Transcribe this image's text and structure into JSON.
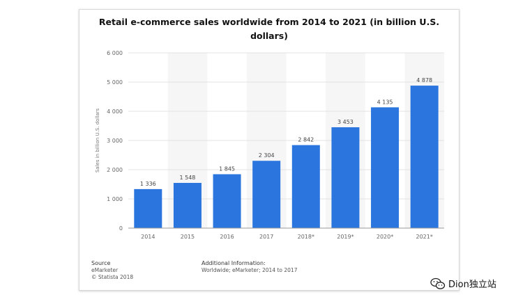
{
  "chart_data": {
    "type": "bar",
    "title": "Retail e-commerce sales worldwide from 2014 to 2021 (in billion U.S. dollars)",
    "title_line1": "Retail e-commerce sales worldwide from 2014 to 2021 (in billion U.S.",
    "title_line2": "dollars)",
    "xlabel": "",
    "ylabel": "Sales in billion U.S. dollars",
    "ylim": [
      0,
      6000
    ],
    "yticks": [
      0,
      1000,
      2000,
      3000,
      4000,
      5000,
      6000
    ],
    "ytick_labels": [
      "0",
      "1 000",
      "2 000",
      "3 000",
      "4 000",
      "5 000",
      "6 000"
    ],
    "categories": [
      "2014",
      "2015",
      "2016",
      "2017",
      "2018*",
      "2019*",
      "2020*",
      "2021*"
    ],
    "values": [
      1336,
      1548,
      1845,
      2304,
      2842,
      3453,
      4135,
      4878
    ],
    "value_labels": [
      "1 336",
      "1 548",
      "1 845",
      "2 304",
      "2 842",
      "3 453",
      "4 135",
      "4 878"
    ],
    "bar_color": "#2a75de",
    "grid": true
  },
  "footer": {
    "source_heading": "Source",
    "source_lines": [
      "eMarketer",
      "© Statista 2018"
    ],
    "additional_heading": "Additional Information:",
    "additional_text": "Worldwide; eMarketer; 2014 to 2017"
  },
  "watermark": {
    "text": "Dion独立站",
    "icon": "wechat-icon"
  }
}
